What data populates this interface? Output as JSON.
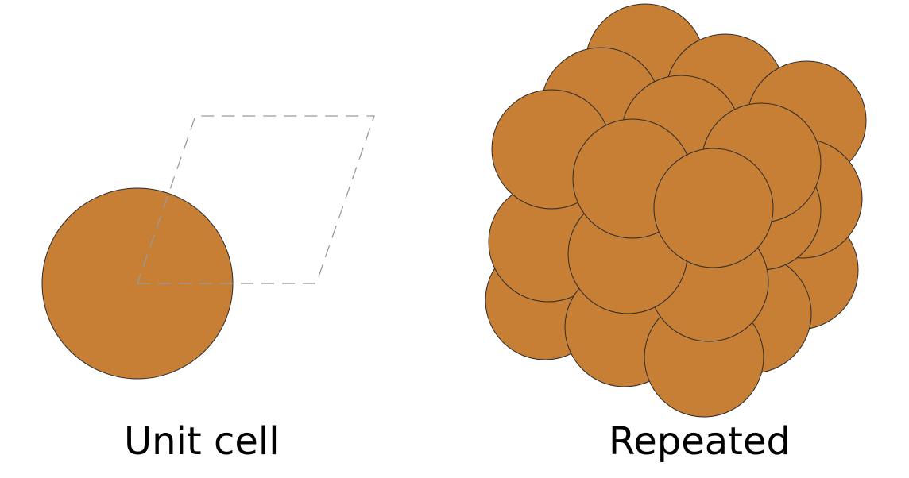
{
  "labels": {
    "unit_cell": "Unit cell",
    "repeated": "Repeated"
  },
  "colors": {
    "atom_fill": "#c67f34",
    "atom_stroke": "#2b2b2b",
    "cell_outline": "#9a9a9a"
  }
}
